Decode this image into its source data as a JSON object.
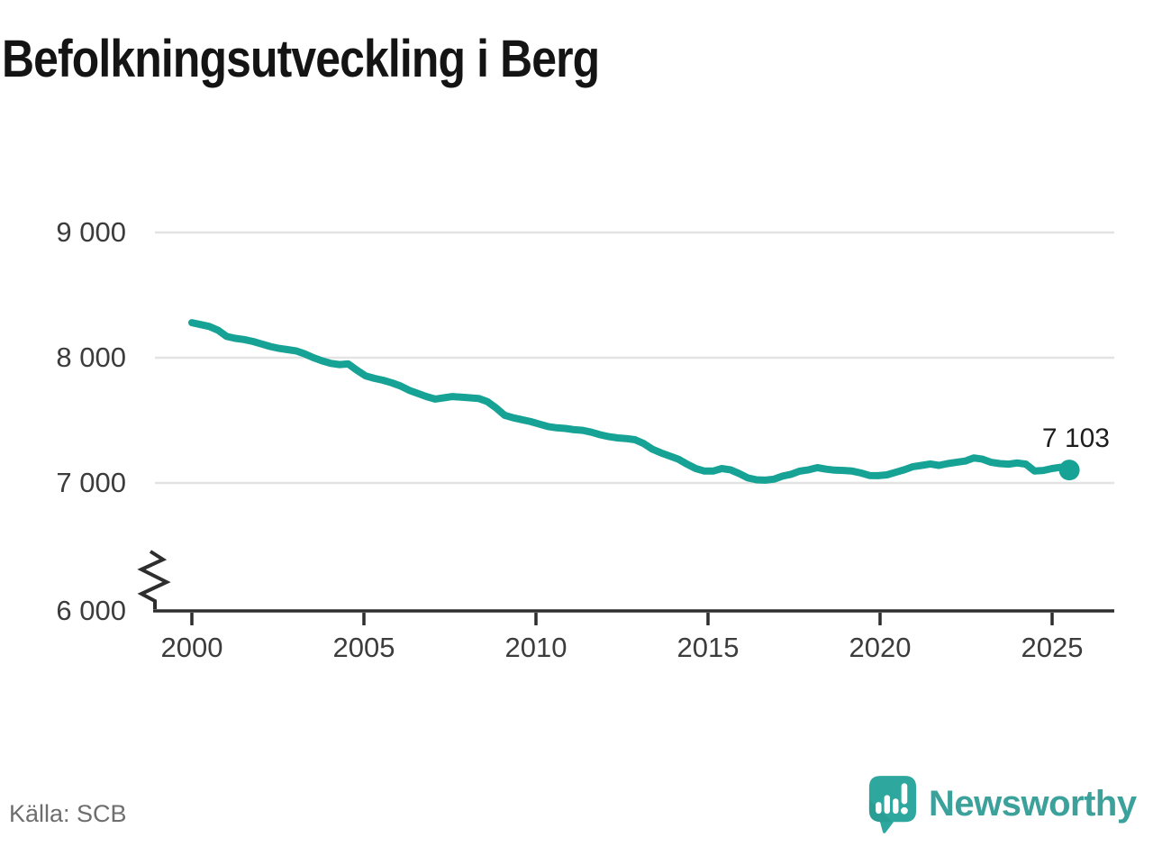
{
  "title": "Befolkningsutveckling i Berg",
  "source": "Källa: SCB",
  "logo": {
    "text": "Newsworthy"
  },
  "colors": {
    "line": "#16a294",
    "dot": "#16a294",
    "grid": "#e3e3e3",
    "axis": "#2e2e2e",
    "tick_text": "#3c3c3c",
    "title_text": "#141414",
    "annotation_text": "#1d1d1d",
    "source_text": "#6e6e6e",
    "logo_teal": "#2ea89e",
    "logo_word_teal": "#3ba19a"
  },
  "chart_data": {
    "type": "line",
    "title": "Befolkningsutveckling i Berg",
    "xlabel": "",
    "ylabel": "",
    "x_start": 2000,
    "x_end": 2025.5,
    "frequency": "quarterly",
    "x_ticks": [
      2000,
      2005,
      2010,
      2015,
      2020,
      2025
    ],
    "x_tick_labels": [
      "2000",
      "2005",
      "2010",
      "2015",
      "2020",
      "2025"
    ],
    "y_ticks": [
      6000,
      7000,
      8000,
      9000
    ],
    "y_tick_labels": [
      "6 000",
      "7 000",
      "8 000",
      "9 000"
    ],
    "axis_break": true,
    "grid": true,
    "last_value": 7103,
    "last_value_label": "7 103",
    "series": [
      {
        "name": "Befolkning i Berg",
        "values": [
          8280,
          8265,
          8250,
          8220,
          8170,
          8155,
          8145,
          8130,
          8110,
          8090,
          8075,
          8065,
          8055,
          8030,
          8000,
          7975,
          7955,
          7945,
          7950,
          7900,
          7855,
          7835,
          7820,
          7800,
          7775,
          7740,
          7715,
          7690,
          7670,
          7680,
          7690,
          7685,
          7680,
          7675,
          7650,
          7600,
          7540,
          7520,
          7505,
          7490,
          7470,
          7450,
          7440,
          7435,
          7425,
          7420,
          7405,
          7385,
          7370,
          7360,
          7355,
          7345,
          7315,
          7270,
          7240,
          7215,
          7190,
          7150,
          7115,
          7095,
          7095,
          7115,
          7105,
          7075,
          7040,
          7025,
          7022,
          7030,
          7055,
          7070,
          7095,
          7105,
          7122,
          7110,
          7102,
          7100,
          7095,
          7080,
          7060,
          7058,
          7065,
          7085,
          7105,
          7130,
          7140,
          7152,
          7140,
          7155,
          7165,
          7175,
          7200,
          7190,
          7165,
          7155,
          7150,
          7160,
          7150,
          7095,
          7100,
          7115,
          7125,
          7103
        ]
      }
    ]
  }
}
